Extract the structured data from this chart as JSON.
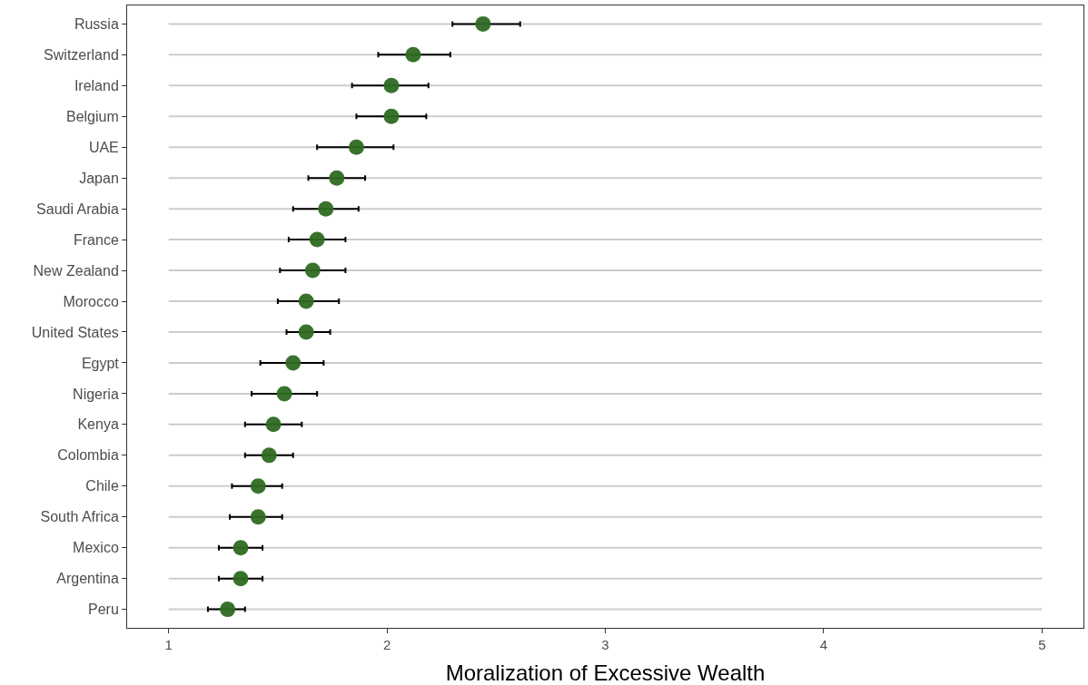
{
  "chart_data": {
    "type": "scatter",
    "xlabel": "Moralization of Excessive Wealth",
    "categories": [
      "Russia",
      "Switzerland",
      "Ireland",
      "Belgium",
      "UAE",
      "Japan",
      "Saudi Arabia",
      "France",
      "New Zealand",
      "Morocco",
      "United States",
      "Egypt",
      "Nigeria",
      "Kenya",
      "Colombia",
      "Chile",
      "South Africa",
      "Mexico",
      "Argentina",
      "Peru"
    ],
    "orientation": "horizontal",
    "series": [
      {
        "color": "#2d6a22",
        "values": [
          2.44,
          2.12,
          2.02,
          2.02,
          1.86,
          1.77,
          1.72,
          1.68,
          1.66,
          1.63,
          1.63,
          1.57,
          1.53,
          1.48,
          1.46,
          1.41,
          1.41,
          1.33,
          1.33,
          1.27
        ],
        "errors": [
          [
            2.3,
            2.61
          ],
          [
            1.96,
            2.29
          ],
          [
            1.84,
            2.19
          ],
          [
            1.86,
            2.18
          ],
          [
            1.68,
            2.03
          ],
          [
            1.64,
            1.9
          ],
          [
            1.57,
            1.87
          ],
          [
            1.55,
            1.81
          ],
          [
            1.51,
            1.81
          ],
          [
            1.5,
            1.78
          ],
          [
            1.54,
            1.74
          ],
          [
            1.42,
            1.71
          ],
          [
            1.38,
            1.68
          ],
          [
            1.35,
            1.61
          ],
          [
            1.35,
            1.57
          ],
          [
            1.29,
            1.52
          ],
          [
            1.28,
            1.52
          ],
          [
            1.23,
            1.43
          ],
          [
            1.23,
            1.43
          ],
          [
            1.18,
            1.35
          ]
        ]
      }
    ],
    "xlim": [
      0.81,
      5.19
    ],
    "xticks": [
      1,
      2,
      3,
      4,
      5
    ],
    "grid": "y",
    "marker": "circle"
  }
}
